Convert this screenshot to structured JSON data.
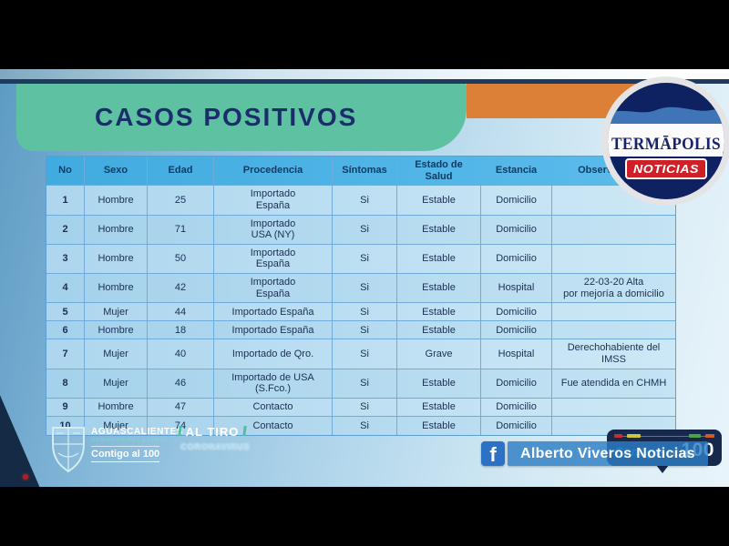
{
  "broadcast": {
    "termapolis_logo": {
      "brand": "TERMĀPOLIS",
      "registered": "®",
      "tagline": "NOTICIAS"
    },
    "lower_third": {
      "facebook_icon": "f",
      "label": "Alberto Viveros Noticias"
    },
    "contigo_100_badge": {
      "word1": "Contigo",
      "word2": "al",
      "word3": "100"
    }
  },
  "slide": {
    "title": "CASOS POSITIVOS",
    "table": {
      "headers": [
        "No",
        "Sexo",
        "Edad",
        "Procedencia",
        "Síntomas",
        "Estado de\nSalud",
        "Estancia",
        "Observaciones"
      ],
      "rows": [
        [
          "1",
          "Hombre",
          "25",
          "Importado\nEspaña",
          "Si",
          "Estable",
          "Domicilio",
          ""
        ],
        [
          "2",
          "Hombre",
          "71",
          "Importado\nUSA (NY)",
          "Si",
          "Estable",
          "Domicilio",
          ""
        ],
        [
          "3",
          "Hombre",
          "50",
          "Importado\nEspaña",
          "Si",
          "Estable",
          "Domicilio",
          ""
        ],
        [
          "4",
          "Hombre",
          "42",
          "Importado\nEspaña",
          "Si",
          "Estable",
          "Hospital",
          "22-03-20 Alta\npor mejoría a domicilio"
        ],
        [
          "5",
          "Mujer",
          "44",
          "Importado España",
          "Si",
          "Estable",
          "Domicilio",
          ""
        ],
        [
          "6",
          "Hombre",
          "18",
          "Importado España",
          "Si",
          "Estable",
          "Domicilio",
          ""
        ],
        [
          "7",
          "Mujer",
          "40",
          "Importado de Qro.",
          "Si",
          "Grave",
          "Hospital",
          "Derechohabiente del\nIMSS"
        ],
        [
          "8",
          "Mujer",
          "46",
          "Importado de USA\n(S.Fco.)",
          "Si",
          "Estable",
          "Domicilio",
          "Fue atendida en CHMH"
        ],
        [
          "9",
          "Hombre",
          "47",
          "Contacto",
          "Si",
          "Estable",
          "Domicilio",
          ""
        ],
        [
          "10",
          "Mujer",
          "74",
          "Contacto",
          "Si",
          "Estable",
          "Domicilio",
          ""
        ]
      ]
    },
    "footer": {
      "government": {
        "name": "AGUASCALIENTES",
        "subtitle": "GOBIERNO DEL ESTADO",
        "slogan": "Contigo al 100"
      },
      "program": {
        "line1": "AL TIRO",
        "line2": "CORONAVIRUS"
      }
    }
  },
  "colors": {
    "banner_teal": "#5ec2a2",
    "accent_orange": "#dd8037",
    "table_header_blue": "#4ab1e6",
    "table_row_blue": "#b3daef",
    "noticias_red": "#cf1f27",
    "facebook_blue": "#2d71c4",
    "badge_navy": "#16294d"
  }
}
